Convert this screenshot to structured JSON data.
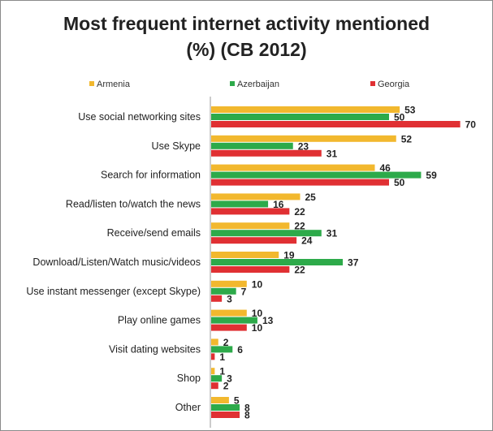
{
  "chart_data": {
    "type": "bar",
    "orientation": "horizontal",
    "title_line1": "Most frequent internet activity mentioned",
    "title_line2": "(%) (CB 2012)",
    "categories": [
      "Use social networking sites",
      "Use Skype",
      "Search for information",
      "Read/listen to/watch the news",
      "Receive/send emails",
      "Download/Listen/Watch music/videos",
      "Use instant messenger (except Skype)",
      "Play online games",
      "Visit dating websites",
      "Shop",
      "Other"
    ],
    "series": [
      {
        "name": "Armenia",
        "color": "#f2b82e",
        "values": [
          53,
          52,
          46,
          25,
          22,
          19,
          10,
          10,
          2,
          1,
          5
        ]
      },
      {
        "name": "Azerbaijan",
        "color": "#2daa4a",
        "values": [
          50,
          23,
          59,
          16,
          31,
          37,
          7,
          13,
          6,
          3,
          8
        ]
      },
      {
        "name": "Georgia",
        "color": "#e03033",
        "values": [
          70,
          31,
          50,
          22,
          24,
          22,
          3,
          10,
          1,
          2,
          8
        ]
      }
    ],
    "xlim": [
      0,
      70
    ],
    "legend_position": "top",
    "grid": false
  }
}
